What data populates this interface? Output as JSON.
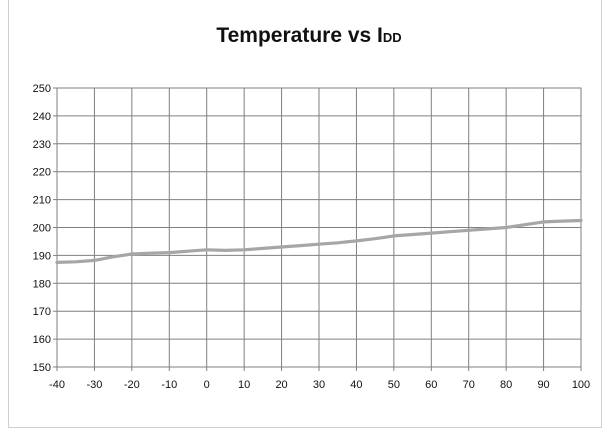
{
  "chart_data": {
    "type": "line",
    "title": {
      "main": "Temperature vs I",
      "subscript": "DD"
    },
    "xlabel": "",
    "ylabel": "",
    "xlim": [
      -40,
      100
    ],
    "ylim": [
      150,
      250
    ],
    "x_ticks": [
      -40,
      -30,
      -20,
      -10,
      0,
      10,
      20,
      30,
      40,
      50,
      60,
      70,
      80,
      90,
      100
    ],
    "y_ticks": [
      150,
      160,
      170,
      180,
      190,
      200,
      210,
      220,
      230,
      240,
      250
    ],
    "grid": true,
    "legend": "none",
    "series": [
      {
        "x": [
          -40,
          -35,
          -30,
          -25,
          -20,
          -15,
          -10,
          -5,
          0,
          5,
          10,
          15,
          20,
          25,
          30,
          35,
          40,
          45,
          50,
          55,
          60,
          65,
          70,
          75,
          80,
          85,
          90,
          95,
          100
        ],
        "y": [
          187.5,
          187.7,
          188.2,
          189.5,
          190.5,
          190.8,
          191.0,
          191.5,
          192.0,
          191.8,
          192.0,
          192.5,
          193.0,
          193.5,
          194.0,
          194.5,
          195.2,
          196.0,
          197.0,
          197.5,
          198.0,
          198.5,
          199.0,
          199.5,
          200.0,
          201.0,
          202.0,
          202.3,
          202.5
        ],
        "color": "#a6a6a6"
      }
    ]
  }
}
